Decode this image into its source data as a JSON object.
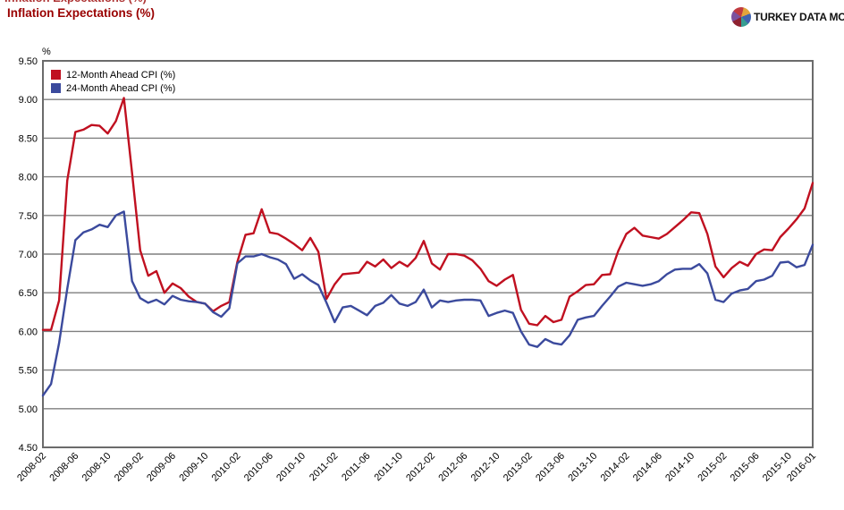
{
  "header": {
    "title": "Inflation Expectations (%)"
  },
  "brand": {
    "name": "TURKEY DATA MONITOR"
  },
  "chart_data": {
    "type": "line",
    "title": "Inflation Expectations (%)",
    "unit_label": "%",
    "grid": "horizontal",
    "legend_position": "top-left",
    "ylim": [
      4.5,
      9.5
    ],
    "ytick_step": 0.5,
    "ylabels": [
      "9.50",
      "9.00",
      "8.50",
      "8.00",
      "7.50",
      "7.00",
      "6.50",
      "6.00",
      "5.50",
      "5.00",
      "4.50"
    ],
    "xtick_labels": [
      "2008-02",
      "2008-06",
      "2008-10",
      "2009-02",
      "2009-06",
      "2009-10",
      "2010-02",
      "2010-06",
      "2010-10",
      "2011-02",
      "2011-06",
      "2011-10",
      "2012-02",
      "2012-06",
      "2012-10",
      "2013-02",
      "2013-06",
      "2013-10",
      "2014-02",
      "2014-06",
      "2014-10",
      "2015-02",
      "2015-06",
      "2015-10",
      "2016-01"
    ],
    "x": [
      "2008-02",
      "2008-03",
      "2008-04",
      "2008-05",
      "2008-06",
      "2008-07",
      "2008-08",
      "2008-09",
      "2008-10",
      "2008-11",
      "2008-12",
      "2009-01",
      "2009-02",
      "2009-03",
      "2009-04",
      "2009-05",
      "2009-06",
      "2009-07",
      "2009-08",
      "2009-09",
      "2009-10",
      "2009-11",
      "2009-12",
      "2010-01",
      "2010-02",
      "2010-03",
      "2010-04",
      "2010-05",
      "2010-06",
      "2010-07",
      "2010-08",
      "2010-09",
      "2010-10",
      "2010-11",
      "2010-12",
      "2011-01",
      "2011-02",
      "2011-03",
      "2011-04",
      "2011-05",
      "2011-06",
      "2011-07",
      "2011-08",
      "2011-09",
      "2011-10",
      "2011-11",
      "2011-12",
      "2012-01",
      "2012-02",
      "2012-03",
      "2012-04",
      "2012-05",
      "2012-06",
      "2012-07",
      "2012-08",
      "2012-09",
      "2012-10",
      "2012-11",
      "2012-12",
      "2013-01",
      "2013-02",
      "2013-03",
      "2013-04",
      "2013-05",
      "2013-06",
      "2013-07",
      "2013-08",
      "2013-09",
      "2013-10",
      "2013-11",
      "2013-12",
      "2014-01",
      "2014-02",
      "2014-03",
      "2014-04",
      "2014-05",
      "2014-06",
      "2014-07",
      "2014-08",
      "2014-09",
      "2014-10",
      "2014-11",
      "2014-12",
      "2015-01",
      "2015-02",
      "2015-03",
      "2015-04",
      "2015-05",
      "2015-06",
      "2015-07",
      "2015-08",
      "2015-09",
      "2015-10",
      "2015-11",
      "2015-12",
      "2016-01"
    ],
    "series": [
      {
        "name": "12-Month Ahead CPI (%)",
        "color": "#c01020",
        "values": [
          6.02,
          6.02,
          6.4,
          7.95,
          8.58,
          8.61,
          8.67,
          8.66,
          8.56,
          8.72,
          9.02,
          8.05,
          7.05,
          6.72,
          6.78,
          6.5,
          6.62,
          6.56,
          6.45,
          6.38,
          6.36,
          6.26,
          6.33,
          6.38,
          6.9,
          7.25,
          7.27,
          7.58,
          7.28,
          7.26,
          7.2,
          7.13,
          7.05,
          7.21,
          7.03,
          6.42,
          6.61,
          6.74,
          6.75,
          6.76,
          6.9,
          6.84,
          6.93,
          6.82,
          6.9,
          6.84,
          6.95,
          7.17,
          6.88,
          6.8,
          7.0,
          7.0,
          6.98,
          6.92,
          6.81,
          6.65,
          6.59,
          6.67,
          6.73,
          6.28,
          6.1,
          6.08,
          6.2,
          6.12,
          6.15,
          6.45,
          6.52,
          6.6,
          6.61,
          6.73,
          6.74,
          7.04,
          7.26,
          7.34,
          7.24,
          7.22,
          7.2,
          7.26,
          7.35,
          7.44,
          7.54,
          7.53,
          7.26,
          6.84,
          6.7,
          6.82,
          6.9,
          6.85,
          7.0,
          7.06,
          7.05,
          7.22,
          7.33,
          7.45,
          7.59,
          7.92
        ]
      },
      {
        "name": "24-Month Ahead CPI (%)",
        "color": "#3b4a9d",
        "values": [
          5.17,
          5.32,
          5.85,
          6.55,
          7.18,
          7.28,
          7.32,
          7.38,
          7.35,
          7.5,
          7.55,
          6.65,
          6.43,
          6.37,
          6.41,
          6.35,
          6.46,
          6.41,
          6.39,
          6.38,
          6.36,
          6.25,
          6.19,
          6.3,
          6.88,
          6.97,
          6.97,
          7.0,
          6.96,
          6.93,
          6.87,
          6.68,
          6.74,
          6.66,
          6.6,
          6.37,
          6.12,
          6.31,
          6.33,
          6.27,
          6.21,
          6.33,
          6.37,
          6.47,
          6.36,
          6.33,
          6.38,
          6.54,
          6.31,
          6.4,
          6.38,
          6.4,
          6.41,
          6.41,
          6.4,
          6.2,
          6.24,
          6.27,
          6.24,
          6.0,
          5.83,
          5.8,
          5.9,
          5.85,
          5.83,
          5.95,
          6.15,
          6.18,
          6.2,
          6.33,
          6.45,
          6.58,
          6.63,
          6.61,
          6.59,
          6.61,
          6.65,
          6.74,
          6.8,
          6.81,
          6.81,
          6.87,
          6.75,
          6.41,
          6.38,
          6.49,
          6.53,
          6.55,
          6.65,
          6.67,
          6.72,
          6.89,
          6.9,
          6.83,
          6.86,
          7.12
        ]
      }
    ]
  }
}
